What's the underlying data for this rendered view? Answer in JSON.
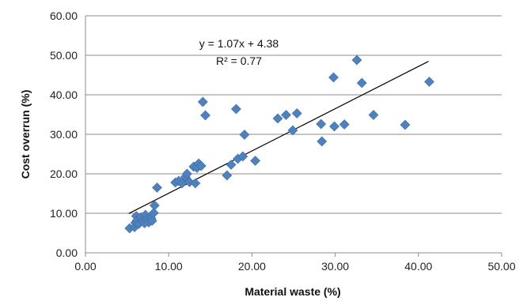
{
  "chart_data": {
    "type": "scatter",
    "title": "",
    "xlabel": "Material waste (%)",
    "ylabel": "Cost overrun (%)",
    "xlim": [
      0,
      50
    ],
    "ylim": [
      0,
      60
    ],
    "x_ticks": [
      "0.00",
      "10.00",
      "20.00",
      "30.00",
      "40.00",
      "50.00"
    ],
    "y_ticks": [
      "0.00",
      "10.00",
      "20.00",
      "30.00",
      "40.00",
      "50.00",
      "60.00"
    ],
    "grid": "horizontal",
    "marker_color": "#4f81bd",
    "trendline": {
      "type": "linear",
      "slope": 1.07,
      "intercept": 4.38,
      "x_range": [
        5.2,
        41.2
      ],
      "color": "#000000",
      "equation_label": "y = 1.07x + 4.38",
      "r2_label": "R² = 0.77"
    },
    "series": [
      {
        "points": [
          [
            5.3,
            6.2
          ],
          [
            5.9,
            6.5
          ],
          [
            6.0,
            7.6
          ],
          [
            6.1,
            9.3
          ],
          [
            6.2,
            8.2
          ],
          [
            6.4,
            7.3
          ],
          [
            6.7,
            9.0
          ],
          [
            6.9,
            8.0
          ],
          [
            7.1,
            7.5
          ],
          [
            7.2,
            9.6
          ],
          [
            7.4,
            8.4
          ],
          [
            7.6,
            7.7
          ],
          [
            7.9,
            8.7
          ],
          [
            8.0,
            8.1
          ],
          [
            8.2,
            10.1
          ],
          [
            8.3,
            12.0
          ],
          [
            8.6,
            16.5
          ],
          [
            10.8,
            17.8
          ],
          [
            11.2,
            18.2
          ],
          [
            11.6,
            17.6
          ],
          [
            12.0,
            19.2
          ],
          [
            12.2,
            20.0
          ],
          [
            12.5,
            17.9
          ],
          [
            13.0,
            21.8
          ],
          [
            13.2,
            17.6
          ],
          [
            13.4,
            21.5
          ],
          [
            13.6,
            22.6
          ],
          [
            13.9,
            22.0
          ],
          [
            14.1,
            38.2
          ],
          [
            14.4,
            34.8
          ],
          [
            17.0,
            19.6
          ],
          [
            17.5,
            22.3
          ],
          [
            18.1,
            36.4
          ],
          [
            18.3,
            23.8
          ],
          [
            18.9,
            24.4
          ],
          [
            19.1,
            29.9
          ],
          [
            20.4,
            23.3
          ],
          [
            23.1,
            34.0
          ],
          [
            24.1,
            34.9
          ],
          [
            24.9,
            31.0
          ],
          [
            25.4,
            35.3
          ],
          [
            28.3,
            32.6
          ],
          [
            28.4,
            28.2
          ],
          [
            29.8,
            44.4
          ],
          [
            29.9,
            32.0
          ],
          [
            31.1,
            32.5
          ],
          [
            32.6,
            48.8
          ],
          [
            33.2,
            43.0
          ],
          [
            34.6,
            34.9
          ],
          [
            38.4,
            32.4
          ],
          [
            41.3,
            43.3
          ]
        ]
      }
    ]
  }
}
